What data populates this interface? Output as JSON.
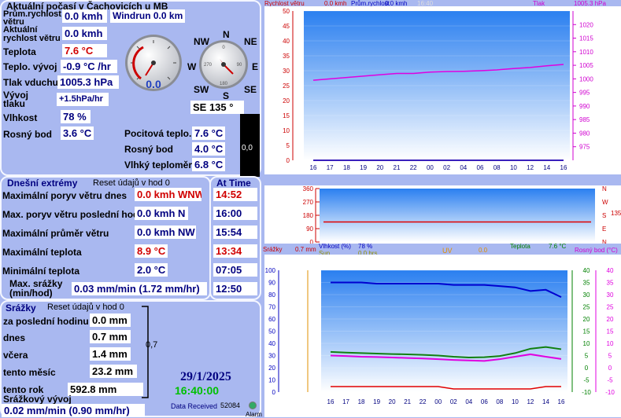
{
  "title": "Aktuální počasí v Čachovicích u MB",
  "current": {
    "wind_speed_label": "Prům.rychlost větru",
    "wind_speed": "0.0 kmh",
    "windrun": "Windrun 0.0 km",
    "gust_label": "Aktuální rychlost větru",
    "gust": "0.0 kmh",
    "temp_label": "Teplota",
    "temp": "7.6 °C",
    "temp_trend_label": "Teplo. vývoj",
    "temp_trend": "-0.9 °C /hr",
    "pressure_label": "Tlak vduchu",
    "pressure": "1005.3 hPa",
    "pressure_trend_label": "Vývoj tlaku",
    "pressure_trend": "+1.5hPa/hr",
    "humidity_label": "Vlhkost",
    "humidity": "78 %",
    "dewpoint_label": "Rosný bod",
    "dewpoint": "3.6 °C",
    "feels_label": "Pocitová teplo.",
    "feels": "7.6 °C",
    "dew2_label": "Rosný bod",
    "dew2": "4.0 °C",
    "wetbulb_label": "Vlhký teploměr",
    "wetbulb": "6.8 °C",
    "gauge_value": "0.0",
    "bar_value": "0,0",
    "wind_dir": "SE 135 °"
  },
  "compass": {
    "n": "N",
    "ne": "NE",
    "e": "E",
    "se": "SE",
    "s": "S",
    "sw": "SW",
    "w": "W",
    "nw": "NW"
  },
  "today": {
    "title": "Dnešní extrémy",
    "reset": "Reset údajů v hod 0",
    "at_time": "At Time",
    "rows": [
      {
        "label": "Maximální poryv větru dnes",
        "value": "0.0 kmh WNW",
        "time": "14:52",
        "red": true
      },
      {
        "label": "Max. poryv větru poslední hod",
        "value": "0.0 kmh   N",
        "time": "16:00",
        "red": false
      },
      {
        "label": "Maximální průměr větru",
        "value": "0.0 kmh NW",
        "time": "15:54",
        "red": false
      },
      {
        "label": "Maximální teplota",
        "value": "8.9 °C",
        "time": "13:34",
        "red": true
      },
      {
        "label": "Minimální teplota",
        "value": "2.0 °C",
        "time": "07:05",
        "red": false
      },
      {
        "label": "Max. srážky (min/hod)",
        "value": "0.03 mm/min (1.72 mm/hr)",
        "time": "12:50",
        "red": false
      }
    ]
  },
  "rain": {
    "title": "Srážky",
    "reset": "Reset údajů v hod 0",
    "rows": [
      {
        "label": "za poslední hodinu",
        "value": "0.0 mm"
      },
      {
        "label": "dnes",
        "value": "0.7 mm"
      },
      {
        "label": "včera",
        "value": "1.4 mm"
      },
      {
        "label": "tento měsíc",
        "value": "23.2 mm"
      },
      {
        "label": "tento rok",
        "value": "592.8 mm"
      }
    ],
    "bracket_value": "0,7",
    "rate_label": "Srážkový vývoj",
    "rate": "0.02 mm/min (0.90 mm/hr)"
  },
  "date": "29/1/2025",
  "time": "16:40:00",
  "data_received_label": "Data Received",
  "data_received": "52084",
  "alarm_label": "Alarm",
  "charts": {
    "top_header": {
      "wind_label": "Rychlost větru",
      "wind_val": "0.0 kmh",
      "avg_label": "Prům.rychlost",
      "avg_val": "0.0 kmh",
      "time": "16:40",
      "pressure_label": "Tlak",
      "pressure_val": "1005.3 hPa"
    },
    "dir_header": {
      "dir_val": "135"
    },
    "bottom_header": {
      "rain_label": "Srážky",
      "rain_val": "0.7 mm",
      "hum_label": "Vlhkost (%)",
      "hum_val": "78 %",
      "sun_label": "Sun",
      "sun_val": "0.0 hrs",
      "uv_label": "UV",
      "uv_val": "0.0",
      "temp_label": "Teplota",
      "temp_val": "7.6 °C",
      "dew_label": "Rosný bod (°C)"
    }
  },
  "chart_data": [
    {
      "type": "line",
      "x": [
        "16",
        "17",
        "18",
        "19",
        "20",
        "21",
        "22",
        "00",
        "02",
        "04",
        "06",
        "08",
        "10",
        "12",
        "14",
        "16"
      ],
      "series": [
        {
          "name": "Tlak",
          "axis": "right",
          "values": [
            999.5,
            1000,
            1000.5,
            1001,
            1001.5,
            1002,
            1002,
            1002.5,
            1002.7,
            1002.8,
            1003,
            1003.3,
            1003.8,
            1004.2,
            1004.8,
            1005.3
          ]
        },
        {
          "name": "Rychlost větru",
          "axis": "left",
          "values": [
            0,
            0,
            0,
            0,
            0,
            0,
            0,
            0,
            0,
            0,
            0,
            0,
            0,
            0,
            0,
            0
          ]
        },
        {
          "name": "Prům.rychlost",
          "axis": "left",
          "values": [
            0,
            0,
            0,
            0,
            0,
            0,
            0,
            0,
            0,
            0,
            0,
            0,
            0,
            0,
            0,
            0
          ]
        }
      ],
      "ylim_left": [
        0,
        50
      ],
      "ylim_right": [
        970,
        1025
      ],
      "left_ticks": [
        0,
        5,
        10,
        15,
        20,
        25,
        30,
        35,
        40,
        45,
        50
      ],
      "right_ticks": [
        975,
        980,
        985,
        990,
        995,
        1000,
        1005,
        1010,
        1015,
        1020
      ]
    },
    {
      "type": "line",
      "series": [
        {
          "name": "direction",
          "values": [
            135,
            135,
            135,
            135,
            135,
            135,
            135,
            135,
            135,
            135,
            135,
            135,
            135,
            135,
            135,
            135
          ]
        }
      ],
      "left_ticks": [
        0,
        90,
        180,
        270,
        360
      ],
      "right_ticks": [
        "N",
        "E",
        "S",
        "W",
        "N"
      ],
      "ylim": [
        0,
        360
      ]
    },
    {
      "type": "line",
      "x": [
        "16",
        "17",
        "18",
        "19",
        "20",
        "21",
        "22",
        "00",
        "02",
        "04",
        "06",
        "08",
        "10",
        "12",
        "14",
        "16"
      ],
      "series": [
        {
          "name": "Vlhkost (%)",
          "axis": "left",
          "values": [
            90,
            90,
            90,
            89,
            89,
            89,
            89,
            89,
            88,
            88,
            88,
            87,
            86,
            83,
            84,
            78
          ]
        },
        {
          "name": "Teplota",
          "axis": "right",
          "values": [
            6.5,
            6.2,
            6,
            5.8,
            5.6,
            5.5,
            5.3,
            5,
            4.5,
            4.2,
            4.3,
            4.8,
            6,
            7.8,
            8.5,
            7.6
          ]
        },
        {
          "name": "Rosný bod (°C)",
          "axis": "right",
          "values": [
            5,
            4.8,
            4.5,
            4.4,
            4.2,
            4,
            3.8,
            3.5,
            3.2,
            3,
            2.8,
            3.5,
            4.5,
            5.5,
            4.5,
            3.6
          ]
        },
        {
          "name": "Srážky",
          "axis": "right2",
          "values": [
            0.3,
            0.3,
            0.3,
            0.3,
            0.3,
            0.3,
            0.3,
            0.3,
            0,
            0,
            0,
            0,
            0,
            0,
            0.3,
            0.3
          ]
        }
      ],
      "ylim_left": [
        0,
        100
      ],
      "ylim_right": [
        -10,
        40
      ],
      "left_ticks": [
        0,
        10,
        20,
        30,
        40,
        50,
        60,
        70,
        80,
        90,
        100
      ],
      "right_ticks": [
        -10,
        -5,
        0,
        5,
        10,
        15,
        20,
        25,
        30,
        35,
        40
      ]
    }
  ]
}
